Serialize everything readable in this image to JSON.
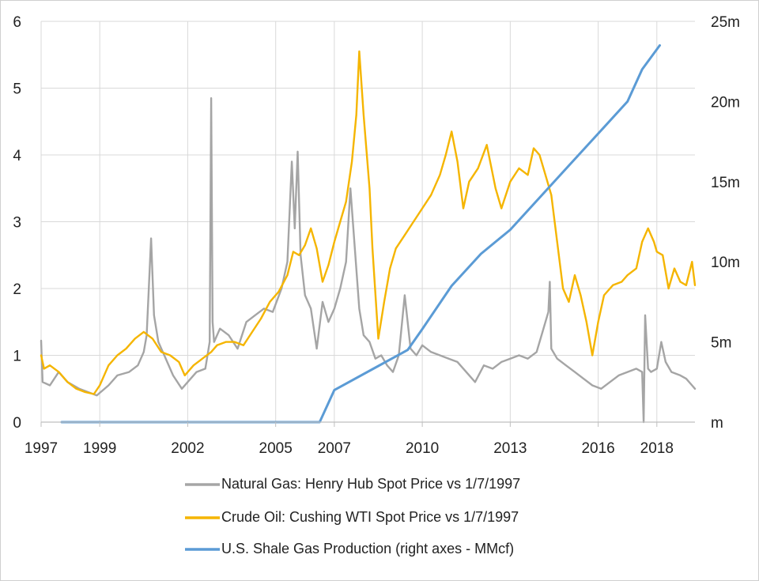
{
  "chart_data": {
    "type": "line",
    "title": "",
    "xlabel": "",
    "ylabel": "",
    "y2label": "",
    "xlim": [
      1997.0,
      2019.3
    ],
    "ylim": [
      0,
      6
    ],
    "y2lim": [
      0,
      25
    ],
    "x_ticks": [
      1997,
      1999,
      2002,
      2005,
      2007,
      2010,
      2013,
      2016,
      2018
    ],
    "x_tick_labels": [
      "1997",
      "1999",
      "2002",
      "2005",
      "2007",
      "2010",
      "2013",
      "2016",
      "2018"
    ],
    "y_ticks": [
      0,
      1,
      2,
      3,
      4,
      5,
      6
    ],
    "y_tick_labels": [
      "0",
      "1",
      "2",
      "3",
      "4",
      "5",
      "6"
    ],
    "y2_ticks": [
      0,
      5,
      10,
      15,
      20,
      25
    ],
    "y2_tick_labels": [
      "m",
      "5m",
      "10m",
      "15m",
      "20m",
      "25m"
    ],
    "grid": true,
    "legend_position": "bottom",
    "series": [
      {
        "name": "Natural Gas: Henry Hub Spot Price vs 1/7/1997",
        "color": "#A5A5A5",
        "axis": "left",
        "x": [
          1997.0,
          1997.05,
          1997.3,
          1997.6,
          1997.9,
          1998.3,
          1998.6,
          1998.9,
          1999.3,
          1999.6,
          2000.0,
          2000.3,
          2000.5,
          2000.6,
          2000.75,
          2000.85,
          2001.0,
          2001.2,
          2001.5,
          2001.8,
          2002.0,
          2002.3,
          2002.6,
          2002.75,
          2002.8,
          2002.85,
          2002.9,
          2003.1,
          2003.4,
          2003.7,
          2004.0,
          2004.3,
          2004.6,
          2004.9,
          2005.2,
          2005.4,
          2005.55,
          2005.65,
          2005.75,
          2005.85,
          2006.0,
          2006.2,
          2006.4,
          2006.6,
          2006.8,
          2007.0,
          2007.2,
          2007.4,
          2007.55,
          2007.7,
          2007.85,
          2008.0,
          2008.2,
          2008.4,
          2008.6,
          2008.8,
          2009.0,
          2009.2,
          2009.4,
          2009.6,
          2009.8,
          2010.0,
          2010.3,
          2010.6,
          2010.9,
          2011.2,
          2011.5,
          2011.8,
          2012.1,
          2012.4,
          2012.7,
          2013.0,
          2013.3,
          2013.6,
          2013.9,
          2014.1,
          2014.3,
          2014.35,
          2014.4,
          2014.6,
          2014.9,
          2015.2,
          2015.5,
          2015.8,
          2016.1,
          2016.4,
          2016.7,
          2017.0,
          2017.3,
          2017.5,
          2017.55,
          2017.6,
          2017.7,
          2017.8,
          2018.0,
          2018.15,
          2018.3,
          2018.5,
          2018.8,
          2019.0,
          2019.2,
          2019.3
        ],
        "values": [
          1.22,
          0.6,
          0.55,
          0.75,
          0.6,
          0.5,
          0.45,
          0.4,
          0.55,
          0.7,
          0.75,
          0.85,
          1.05,
          1.3,
          2.75,
          1.6,
          1.2,
          1.0,
          0.7,
          0.5,
          0.6,
          0.75,
          0.8,
          1.2,
          4.85,
          1.5,
          1.2,
          1.4,
          1.3,
          1.1,
          1.5,
          1.6,
          1.7,
          1.65,
          2.0,
          2.4,
          3.9,
          2.9,
          4.05,
          2.5,
          1.9,
          1.7,
          1.1,
          1.8,
          1.5,
          1.7,
          2.0,
          2.4,
          3.5,
          2.6,
          1.7,
          1.3,
          1.2,
          0.95,
          1.0,
          0.85,
          0.75,
          1.0,
          1.9,
          1.1,
          1.0,
          1.15,
          1.05,
          1.0,
          0.95,
          0.9,
          0.75,
          0.6,
          0.85,
          0.8,
          0.9,
          0.95,
          1.0,
          0.95,
          1.05,
          1.35,
          1.65,
          2.1,
          1.1,
          0.95,
          0.85,
          0.75,
          0.65,
          0.55,
          0.5,
          0.6,
          0.7,
          0.75,
          0.8,
          0.75,
          0.0,
          1.6,
          0.8,
          0.75,
          0.8,
          1.2,
          0.9,
          0.75,
          0.7,
          0.65,
          0.55,
          0.5
        ]
      },
      {
        "name": "Crude Oil: Cushing WTI Spot Price vs 1/7/1997",
        "color": "#F5B500",
        "axis": "left",
        "x": [
          1997.0,
          1997.1,
          1997.3,
          1997.6,
          1997.9,
          1998.2,
          1998.5,
          1998.8,
          1999.0,
          1999.3,
          1999.6,
          1999.9,
          2000.2,
          2000.5,
          2000.8,
          2001.1,
          2001.4,
          2001.7,
          2001.9,
          2002.2,
          2002.5,
          2002.8,
          2003.0,
          2003.3,
          2003.6,
          2003.9,
          2004.2,
          2004.5,
          2004.8,
          2005.1,
          2005.4,
          2005.6,
          2005.8,
          2006.0,
          2006.2,
          2006.4,
          2006.6,
          2006.8,
          2007.0,
          2007.2,
          2007.4,
          2007.6,
          2007.75,
          2007.85,
          2008.0,
          2008.2,
          2008.3,
          2008.5,
          2008.7,
          2008.9,
          2009.1,
          2009.4,
          2009.7,
          2010.0,
          2010.3,
          2010.6,
          2010.8,
          2011.0,
          2011.2,
          2011.4,
          2011.6,
          2011.9,
          2012.2,
          2012.5,
          2012.7,
          2013.0,
          2013.3,
          2013.6,
          2013.8,
          2014.0,
          2014.2,
          2014.4,
          2014.6,
          2014.8,
          2015.0,
          2015.2,
          2015.4,
          2015.6,
          2015.8,
          2016.0,
          2016.2,
          2016.5,
          2016.8,
          2017.0,
          2017.3,
          2017.5,
          2017.7,
          2017.9,
          2018.0,
          2018.2,
          2018.4,
          2018.6,
          2018.8,
          2019.0,
          2019.2,
          2019.3
        ],
        "values": [
          1.0,
          0.8,
          0.85,
          0.75,
          0.6,
          0.5,
          0.45,
          0.42,
          0.55,
          0.85,
          1.0,
          1.1,
          1.25,
          1.35,
          1.25,
          1.05,
          1.0,
          0.9,
          0.7,
          0.85,
          0.95,
          1.05,
          1.15,
          1.2,
          1.2,
          1.15,
          1.35,
          1.55,
          1.8,
          1.95,
          2.2,
          2.55,
          2.5,
          2.65,
          2.9,
          2.6,
          2.1,
          2.35,
          2.7,
          3.0,
          3.3,
          3.9,
          4.6,
          5.55,
          4.6,
          3.5,
          2.6,
          1.25,
          1.8,
          2.3,
          2.6,
          2.8,
          3.0,
          3.2,
          3.4,
          3.7,
          4.0,
          4.35,
          3.9,
          3.2,
          3.6,
          3.8,
          4.15,
          3.5,
          3.2,
          3.6,
          3.8,
          3.7,
          4.1,
          4.0,
          3.7,
          3.4,
          2.7,
          2.0,
          1.8,
          2.2,
          1.9,
          1.5,
          1.0,
          1.5,
          1.9,
          2.05,
          2.1,
          2.2,
          2.3,
          2.7,
          2.9,
          2.7,
          2.55,
          2.5,
          2.0,
          2.3,
          2.1,
          2.05,
          2.4,
          2.05
        ]
      },
      {
        "name": "U.S. Shale Gas Production (right axes - MMcf)",
        "color": "#5B9BD5",
        "axis": "right",
        "x": [
          1997.7,
          2006.5,
          2007.0,
          2008.5,
          2009.5,
          2010.0,
          2011.0,
          2012.0,
          2013.0,
          2014.0,
          2015.0,
          2016.0,
          2017.0,
          2017.5,
          2018.1
        ],
        "values": [
          0.0,
          0.0,
          2.0,
          3.5,
          4.5,
          5.8,
          8.5,
          10.5,
          12.0,
          14.0,
          16.0,
          18.0,
          20.0,
          22.0,
          23.5
        ]
      }
    ]
  }
}
